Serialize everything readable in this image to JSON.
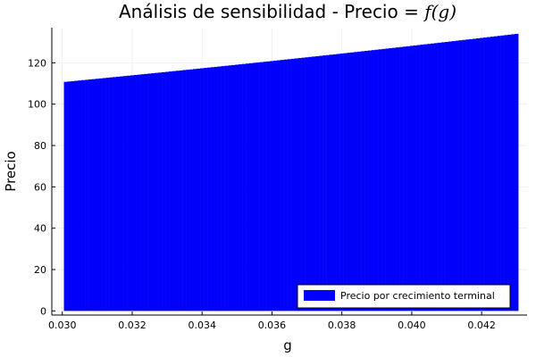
{
  "chart_data": {
    "type": "bar",
    "title": "Análisis de sensibilidad - Precio = ",
    "title_math": "f(g)",
    "xlabel": "g",
    "ylabel": "Precio",
    "xlim": [
      0.0297,
      0.0433
    ],
    "ylim": [
      -2,
      137
    ],
    "x_ticks": [
      0.03,
      0.032,
      0.034,
      0.036,
      0.038,
      0.04,
      0.042
    ],
    "x_tick_labels": [
      "0.030",
      "0.032",
      "0.034",
      "0.036",
      "0.038",
      "0.040",
      "0.042"
    ],
    "y_ticks": [
      0,
      20,
      40,
      60,
      80,
      100,
      120
    ],
    "y_tick_labels": [
      "0",
      "20",
      "40",
      "60",
      "80",
      "100",
      "120"
    ],
    "grid": true,
    "legend_position": "bottom-right",
    "bar_color": "#0000ff",
    "series": [
      {
        "name": "Precio por crecimiento terminal",
        "x_start": 0.0301,
        "x_end": 0.043,
        "x_step": 0.0001,
        "y_start": 110.8,
        "y_end": 134.0
      }
    ]
  }
}
